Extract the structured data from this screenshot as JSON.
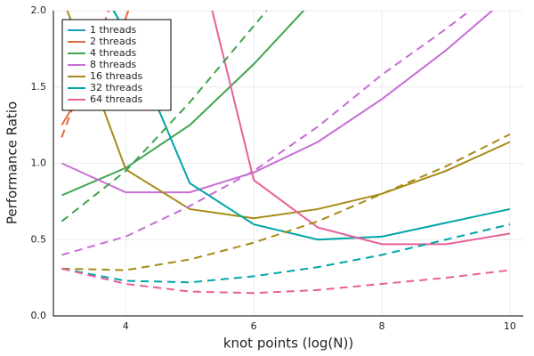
{
  "chart_data": {
    "type": "line",
    "xlabel": "knot points (log(N))",
    "ylabel": "Performance Ratio",
    "xlim": [
      2.87,
      10.21
    ],
    "ylim": [
      0,
      2
    ],
    "xticks": [
      4,
      6,
      8,
      10
    ],
    "yticks": [
      {
        "value": 0,
        "label": "0.0"
      },
      {
        "value": 0.5,
        "label": "0.5"
      },
      {
        "value": 1,
        "label": "1.0"
      },
      {
        "value": 1.5,
        "label": "1.5"
      },
      {
        "value": 2,
        "label": "2.0"
      }
    ],
    "grid": true,
    "legend": "top-left",
    "series": [
      {
        "name": "1 threads",
        "color": "#1f9bc8",
        "x": [
          3,
          4
        ],
        "values": [
          2.6,
          1.86
        ]
      },
      {
        "name": "2 threads",
        "color": "#e06b3f",
        "x": [
          3,
          4,
          5
        ],
        "values": [
          1.25,
          1.95,
          3.2
        ]
      },
      {
        "name": "4 threads",
        "color": "#3ea44e",
        "x": [
          3,
          4,
          5,
          6,
          7
        ],
        "values": [
          0.79,
          0.97,
          1.25,
          1.65,
          2.1
        ]
      },
      {
        "name": "8 threads",
        "color": "#c56fd3",
        "x": [
          3,
          4,
          5,
          6,
          7,
          8,
          9,
          10
        ],
        "values": [
          1.0,
          0.81,
          0.81,
          0.94,
          1.14,
          1.42,
          1.74,
          2.1
        ]
      },
      {
        "name": "16 threads",
        "color": "#a88a16",
        "x": [
          3,
          4,
          5,
          6,
          7,
          8,
          9,
          10
        ],
        "values": [
          2.1,
          0.96,
          0.7,
          0.64,
          0.7,
          0.8,
          0.95,
          1.14
        ]
      },
      {
        "name": "32 threads",
        "color": "#00a5a8",
        "x": [
          3,
          4,
          5,
          6,
          7,
          8,
          9,
          10
        ],
        "values": [
          2.6,
          1.86,
          0.87,
          0.6,
          0.5,
          0.52,
          0.61,
          0.7
        ]
      },
      {
        "name": "64 threads",
        "color": "#e8609a",
        "x": [
          5,
          6,
          7,
          8,
          9,
          10
        ],
        "values": [
          2.6,
          0.89,
          0.58,
          0.47,
          0.47,
          0.54
        ]
      },
      {
        "color": "#e06b3f",
        "dash": true,
        "x": [
          3,
          4
        ],
        "values": [
          1.17,
          2.3
        ]
      },
      {
        "color": "#3ea44e",
        "dash": true,
        "x": [
          3,
          4,
          5,
          6,
          7
        ],
        "values": [
          0.62,
          0.95,
          1.4,
          1.9,
          2.4
        ]
      },
      {
        "color": "#c56fd3",
        "dash": true,
        "x": [
          3,
          4,
          5,
          6,
          7,
          8,
          9,
          10
        ],
        "values": [
          0.4,
          0.52,
          0.72,
          0.95,
          1.24,
          1.58,
          1.88,
          2.2
        ]
      },
      {
        "color": "#a88a16",
        "dash": true,
        "x": [
          3,
          4,
          5,
          6,
          7,
          8,
          9,
          10
        ],
        "values": [
          0.31,
          0.3,
          0.37,
          0.48,
          0.62,
          0.8,
          0.98,
          1.19
        ]
      },
      {
        "color": "#00a5a8",
        "dash": true,
        "x": [
          3,
          4,
          5,
          6,
          7,
          8,
          9,
          10
        ],
        "values": [
          0.31,
          0.23,
          0.22,
          0.26,
          0.32,
          0.4,
          0.5,
          0.6
        ]
      },
      {
        "color": "#e8609a",
        "dash": true,
        "x": [
          3,
          4,
          5,
          6,
          7,
          8,
          9,
          10
        ],
        "values": [
          0.31,
          0.21,
          0.16,
          0.15,
          0.17,
          0.21,
          0.25,
          0.3
        ]
      }
    ]
  }
}
